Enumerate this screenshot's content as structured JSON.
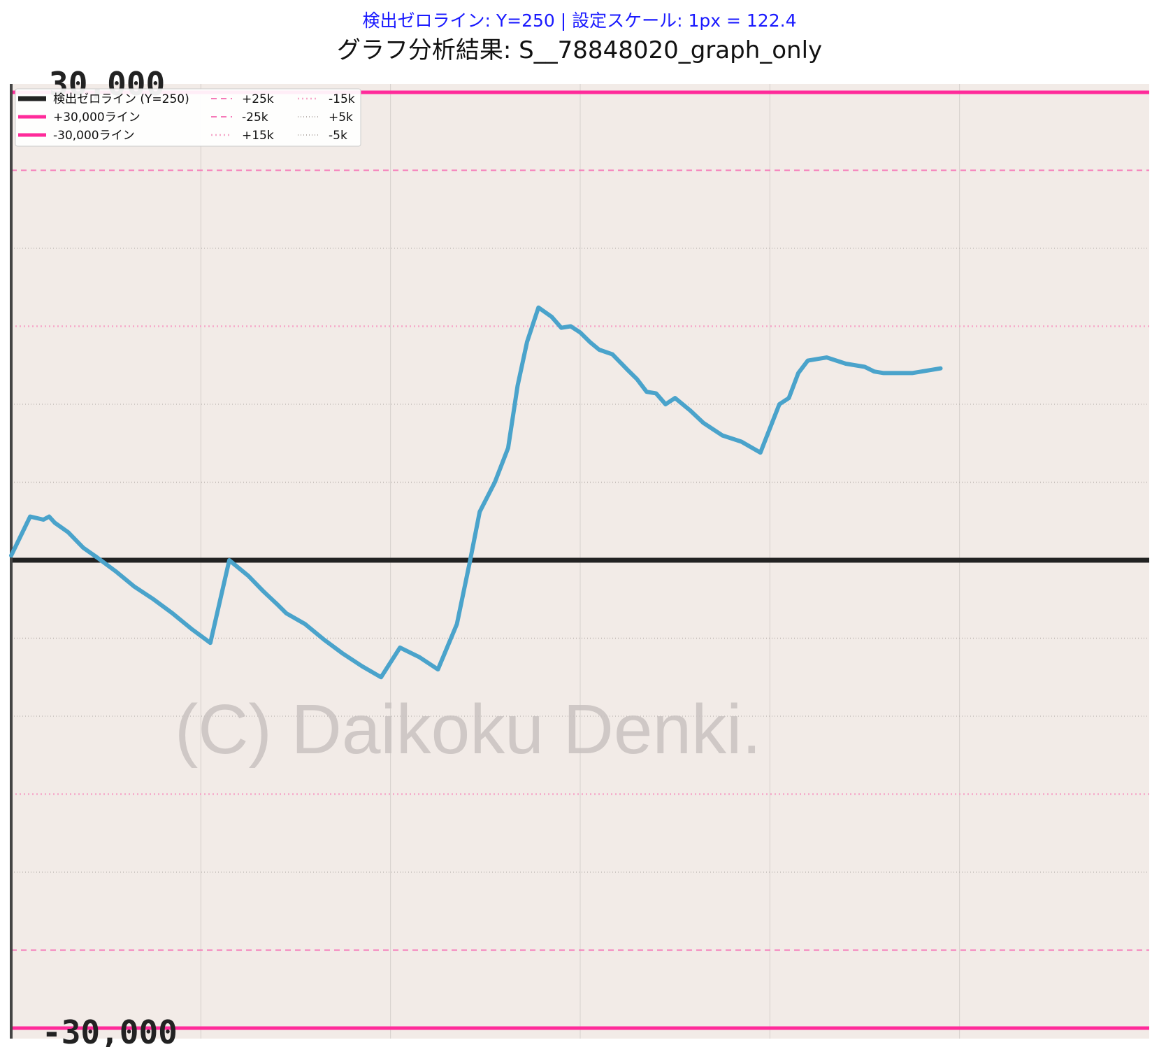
{
  "subtitle": "検出ゼロライン: Y=250 | 設定スケール: 1px = 122.4",
  "title": "グラフ分析結果: S__78848020_graph_only",
  "watermark": "(C) Daikoku Denki.",
  "top_cut_label": "30,000",
  "bottom_cut_label": "-30,000",
  "colors": {
    "background": "#f2ebe7",
    "zero_line": "#222222",
    "limit_line": "#ff2a9a",
    "dashed_25k": "#f57ab8",
    "dotted_15k": "#f6a6c9",
    "dotted_5k": "#b9b2ae",
    "series": "#4aa3cb",
    "grid": "#d6d0cc"
  },
  "legend": [
    {
      "label": "検出ゼロライン (Y=250)",
      "style": "zero"
    },
    {
      "label": "+30,000ライン",
      "style": "limit"
    },
    {
      "label": "-30,000ライン",
      "style": "limit"
    },
    {
      "label": "+25k",
      "style": "dash25"
    },
    {
      "label": "-25k",
      "style": "dash25"
    },
    {
      "label": "+15k",
      "style": "dot15"
    },
    {
      "label": "-15k",
      "style": "dot15"
    },
    {
      "label": "+5k",
      "style": "dot5"
    },
    {
      "label": "-5k",
      "style": "dot5"
    }
  ],
  "chart_data": {
    "type": "line",
    "ylim": [
      -30000,
      30000
    ],
    "xlim": [
      0,
      6
    ],
    "grid": true,
    "legend_position": "top-left",
    "hlines": [
      {
        "y": 0,
        "style": "zero"
      },
      {
        "y": 30000,
        "style": "limit"
      },
      {
        "y": -30000,
        "style": "limit"
      },
      {
        "y": 25000,
        "style": "dash25"
      },
      {
        "y": -25000,
        "style": "dash25"
      },
      {
        "y": 15000,
        "style": "dot15"
      },
      {
        "y": -15000,
        "style": "dot15"
      },
      {
        "y": 5000,
        "style": "dot5"
      },
      {
        "y": -5000,
        "style": "dot5"
      }
    ],
    "extra_hlines_unlabeled": [
      20000,
      10000,
      -10000,
      -20000
    ],
    "series": [
      {
        "x": [
          0,
          0.1,
          0.17,
          0.2,
          0.23,
          0.3,
          0.38,
          0.45,
          0.55,
          0.65,
          0.75,
          0.85,
          0.95,
          1.05,
          1.15,
          1.25,
          1.33,
          1.4,
          1.45,
          1.55,
          1.65,
          1.75,
          1.85,
          1.95,
          2.05,
          2.15,
          2.25,
          2.35,
          2.42,
          2.47,
          2.55,
          2.62,
          2.67,
          2.72,
          2.78,
          2.85,
          2.9,
          2.95,
          3.0,
          3.05,
          3.1,
          3.17,
          3.25,
          3.3,
          3.35,
          3.4,
          3.45,
          3.5,
          3.58,
          3.65,
          3.75,
          3.85,
          3.95,
          4.05,
          4.1,
          4.15,
          4.2,
          4.3,
          4.4,
          4.5,
          4.55,
          4.6,
          4.65,
          4.7,
          4.75,
          4.8,
          4.85,
          4.9
        ],
        "y": [
          300,
          2800,
          2600,
          2800,
          2400,
          1800,
          800,
          200,
          -700,
          -1700,
          -2500,
          -3400,
          -4400,
          -5300,
          -0.5,
          -1000,
          -2000,
          -2800,
          -3400,
          -4100,
          -5100,
          -6000,
          -6800,
          -7500,
          -5600,
          -6200,
          -7000,
          -4100,
          0,
          3100,
          5000,
          7200,
          11200,
          14000,
          16200,
          15600,
          14900,
          15000,
          14600,
          14000,
          13500,
          13200,
          12200,
          11600,
          10800,
          10700,
          10000,
          10400,
          9600,
          8800,
          8000,
          7600,
          6900,
          10000,
          10400,
          12000,
          12800,
          13000,
          12600,
          12400,
          12100,
          12000,
          12000,
          12000,
          12000,
          12100,
          12200,
          12300
        ]
      }
    ],
    "title": "グラフ分析結果: S__78848020_graph_only",
    "xlabel": "",
    "ylabel": ""
  }
}
